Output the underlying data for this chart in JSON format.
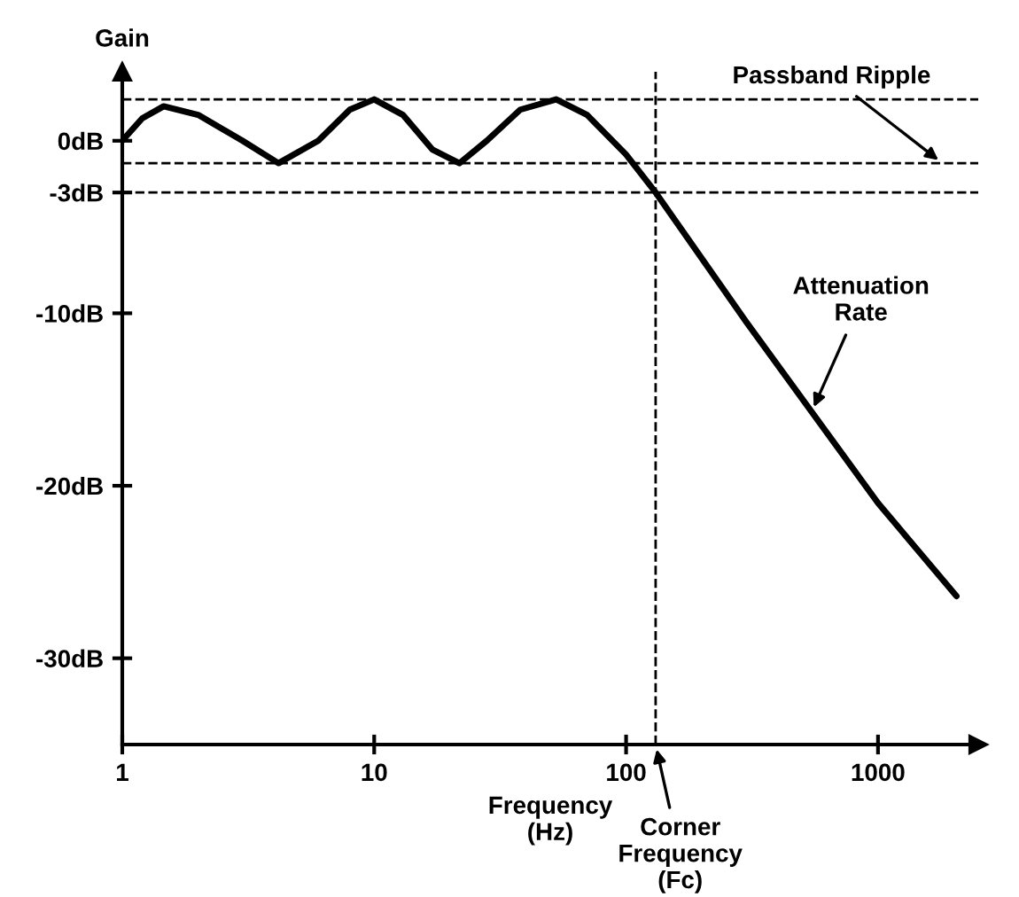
{
  "chart_data": {
    "type": "line",
    "ylabel": "Gain",
    "xlabel": "Frequency\n(Hz)",
    "log": "x",
    "x": [
      1,
      1.2,
      1.46,
      2,
      3,
      4.17,
      6,
      8,
      10,
      13,
      17,
      21.8,
      28,
      38,
      52.8,
      70,
      100,
      131,
      300,
      1000,
      2049
    ],
    "series": [
      {
        "color": "#000000",
        "values": [
          0,
          1.3,
          2.0,
          1.5,
          0,
          -1.3,
          0,
          1.8,
          2.4,
          1.5,
          -0.5,
          -1.3,
          0,
          1.8,
          2.4,
          1.5,
          -0.8,
          -3,
          -10.5,
          -21,
          -26.4
        ]
      }
    ],
    "xlim": [
      1,
      2500
    ],
    "ylim": [
      -35,
      4
    ],
    "xticks": [
      1,
      10,
      100,
      1000
    ],
    "yticks": [
      {
        "value": 0,
        "label": "0dB"
      },
      {
        "value": -3,
        "label": "-3dB"
      },
      {
        "value": -10,
        "label": "-10dB"
      },
      {
        "value": -20,
        "label": "-20dB"
      },
      {
        "value": -30,
        "label": "-30dB"
      }
    ],
    "ref_lines": [
      {
        "axis": "y",
        "value": 2.4,
        "label": null,
        "line_style": "dashed",
        "color": "#000000"
      },
      {
        "axis": "y",
        "value": -1.3,
        "label": null,
        "line_style": "dashed",
        "color": "#000000"
      },
      {
        "axis": "y",
        "value": -3,
        "label": null,
        "line_style": "dashed",
        "color": "#000000"
      },
      {
        "axis": "x",
        "value": 131,
        "label": null,
        "line_style": "dashed",
        "color": "#000000"
      }
    ],
    "annotations": [
      {
        "text": "Passband Ripple",
        "x": 1800,
        "y": -1.3
      },
      {
        "text": "Attenuation\nRate",
        "x": 546,
        "y": -15.7
      },
      {
        "text": "Corner\nFrequency\n(Fc)",
        "x": 131,
        "y": -35
      }
    ],
    "grid": false,
    "legend": false,
    "marker": "none",
    "line_style": "solid"
  }
}
